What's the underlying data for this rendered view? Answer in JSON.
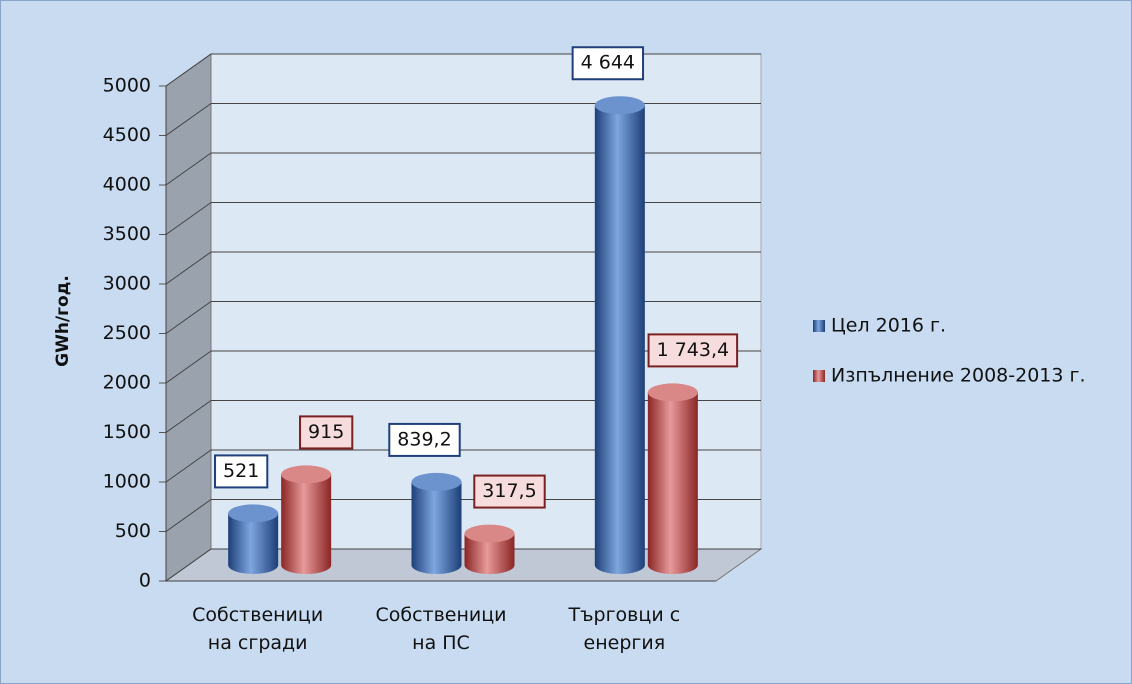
{
  "chart_data": {
    "type": "bar3d",
    "y_label": "GWh/год.",
    "categories": [
      "Собственици на сгради",
      "Собственици на ПС",
      "Търговци с енергия"
    ],
    "series": [
      {
        "name": "Цел 2016 г.",
        "color": "#2f5c9e",
        "values": [
          521,
          839.2,
          4644
        ],
        "value_labels": [
          "521",
          "839,2",
          "4 644"
        ]
      },
      {
        "name": "Изпълнение 2008-2013 г.",
        "color": "#b23b3b",
        "values": [
          915,
          317.5,
          1743.4
        ],
        "value_labels": [
          "915",
          "317,5",
          "1 743,4"
        ]
      }
    ],
    "ylim": [
      0,
      5000
    ],
    "yticks": [
      0,
      500,
      1000,
      1500,
      2000,
      2500,
      3000,
      3500,
      4000,
      4500,
      5000
    ],
    "grid": true,
    "legend": "right"
  }
}
